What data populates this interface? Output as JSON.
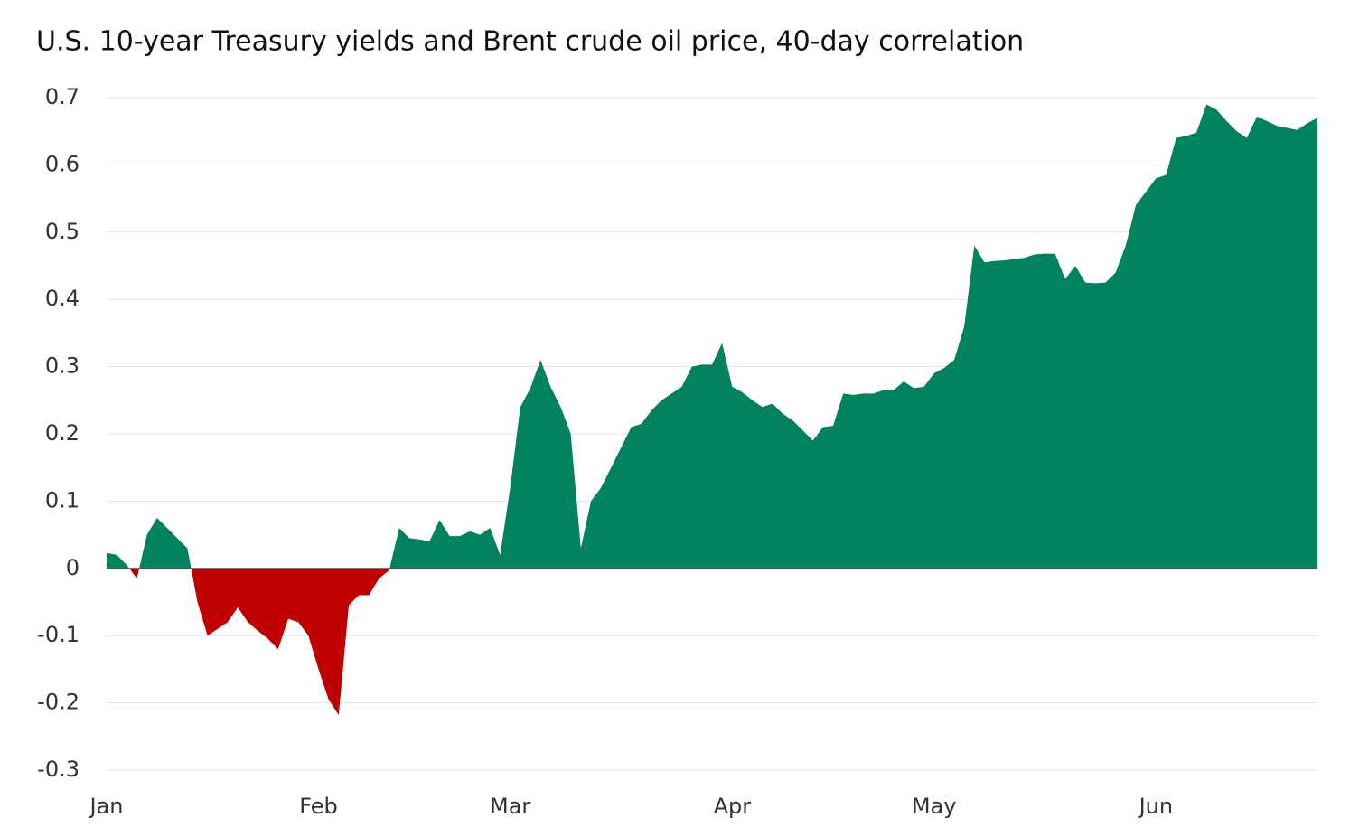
{
  "chart_data": {
    "type": "area",
    "title": "U.S. 10-year Treasury yields and Brent crude oil price, 40-day correlation",
    "color": "#00835e",
    "negative_color": "#c00000",
    "values": [
      0.023,
      0.02,
      0.005,
      -0.015,
      0.05,
      0.075,
      0.06,
      0.045,
      0.03,
      -0.05,
      -0.1,
      -0.09,
      -0.08,
      -0.058,
      -0.08,
      -0.093,
      -0.105,
      -0.12,
      -0.075,
      -0.08,
      -0.1,
      -0.15,
      -0.195,
      -0.218,
      -0.055,
      -0.04,
      -0.04,
      -0.015,
      -0.003,
      0.06,
      0.045,
      0.043,
      0.04,
      0.072,
      0.048,
      0.048,
      0.055,
      0.05,
      0.06,
      0.02,
      0.12,
      0.24,
      0.268,
      0.31,
      0.27,
      0.24,
      0.2,
      0.03,
      0.1,
      0.12,
      0.15,
      0.18,
      0.21,
      0.215,
      0.235,
      0.25,
      0.26,
      0.27,
      0.3,
      0.303,
      0.303,
      0.335,
      0.27,
      0.262,
      0.25,
      0.24,
      0.245,
      0.23,
      0.22,
      0.205,
      0.19,
      0.21,
      0.212,
      0.26,
      0.258,
      0.26,
      0.26,
      0.265,
      0.265,
      0.278,
      0.268,
      0.27,
      0.29,
      0.298,
      0.31,
      0.36,
      0.48,
      0.455,
      0.457,
      0.458,
      0.46,
      0.462,
      0.467,
      0.468,
      0.468,
      0.43,
      0.45,
      0.425,
      0.424,
      0.425,
      0.44,
      0.48,
      0.54,
      0.56,
      0.58,
      0.585,
      0.64,
      0.643,
      0.648,
      0.69,
      0.682,
      0.665,
      0.65,
      0.64,
      0.672,
      0.665,
      0.658,
      0.655,
      0.652,
      0.662,
      0.67
    ],
    "xlim": [
      0,
      120
    ],
    "xticks": [
      {
        "value": 0,
        "label": "Jan"
      },
      {
        "value": 21,
        "label": "Feb"
      },
      {
        "value": 40,
        "label": "Mar"
      },
      {
        "value": 62,
        "label": "Apr"
      },
      {
        "value": 82,
        "label": "May"
      },
      {
        "value": 104,
        "label": "Jun"
      }
    ],
    "ylim": [
      -0.3,
      0.7
    ],
    "yticks": [
      -0.3,
      -0.2,
      -0.1,
      0,
      0.1,
      0.2,
      0.3,
      0.4,
      0.5,
      0.6,
      0.7
    ],
    "grid": true
  }
}
